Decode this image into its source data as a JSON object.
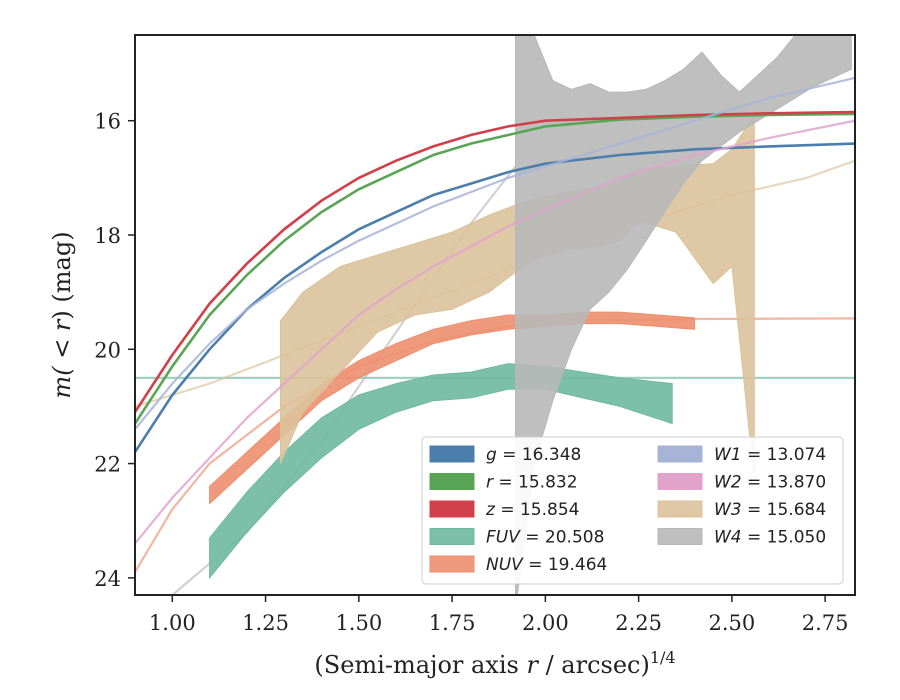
{
  "chart_data": {
    "type": "line",
    "xlabel_main": "(Semi-major axis ",
    "xlabel_r": "r",
    "xlabel_unit": " / arcsec)",
    "xlabel_exp": "1/4",
    "ylabel_main": "m(",
    "ylabel_lt": " < ",
    "ylabel_r": "r",
    "ylabel_tail": ") (mag)",
    "xlim": [
      0.9,
      2.83
    ],
    "ylim": [
      24.3,
      14.5
    ],
    "y_inverted": true,
    "grid": false,
    "legend_position": "lower-right",
    "xticks": [
      "1.00",
      "1.25",
      "1.50",
      "1.75",
      "2.00",
      "2.25",
      "2.50",
      "2.75"
    ],
    "xtick_values": [
      1.0,
      1.25,
      1.5,
      1.75,
      2.0,
      2.25,
      2.5,
      2.75
    ],
    "yticks": [
      "16",
      "18",
      "20",
      "22",
      "24"
    ],
    "ytick_values": [
      16,
      18,
      20,
      22,
      24
    ],
    "series": [
      {
        "name": "g = 16.348",
        "label_var": "g",
        "label_val": " = 16.348",
        "color": "#4c7eab",
        "style": "line",
        "width": 2.6,
        "x": [
          0.9,
          1.0,
          1.1,
          1.2,
          1.3,
          1.4,
          1.5,
          1.6,
          1.7,
          1.8,
          1.9,
          2.0,
          2.2,
          2.4,
          2.6,
          2.83
        ],
        "y": [
          21.8,
          20.8,
          20.0,
          19.3,
          18.75,
          18.3,
          17.9,
          17.6,
          17.3,
          17.1,
          16.9,
          16.75,
          16.6,
          16.5,
          16.45,
          16.4
        ]
      },
      {
        "name": "r = 15.832",
        "label_var": "r",
        "label_val": " = 15.832",
        "color": "#5aa555",
        "style": "line",
        "width": 2.6,
        "x": [
          0.9,
          1.0,
          1.1,
          1.2,
          1.3,
          1.4,
          1.5,
          1.6,
          1.7,
          1.8,
          1.9,
          2.0,
          2.2,
          2.4,
          2.6,
          2.83
        ],
        "y": [
          21.3,
          20.3,
          19.4,
          18.7,
          18.1,
          17.6,
          17.2,
          16.9,
          16.6,
          16.4,
          16.25,
          16.1,
          15.98,
          15.93,
          15.9,
          15.88
        ]
      },
      {
        "name": "z = 15.854",
        "label_var": "z",
        "label_val": " = 15.854",
        "color": "#d1404a",
        "style": "line",
        "width": 2.6,
        "x": [
          0.9,
          1.0,
          1.1,
          1.2,
          1.3,
          1.4,
          1.5,
          1.6,
          1.7,
          1.8,
          1.9,
          2.0,
          2.2,
          2.4,
          2.6,
          2.83
        ],
        "y": [
          21.1,
          20.1,
          19.2,
          18.5,
          17.9,
          17.4,
          17.0,
          16.7,
          16.45,
          16.25,
          16.1,
          16.0,
          15.95,
          15.9,
          15.87,
          15.85
        ]
      },
      {
        "name": "FUV = 20.508",
        "label_var": "FUV",
        "label_val": " = 20.508",
        "color": "#6fb9a0",
        "style": "band",
        "x": [
          1.1,
          1.2,
          1.3,
          1.4,
          1.5,
          1.6,
          1.7,
          1.8,
          1.9,
          2.0,
          2.1,
          2.2,
          2.34
        ],
        "y_low": [
          24.0,
          23.2,
          22.5,
          21.9,
          21.4,
          21.1,
          20.9,
          20.85,
          20.7,
          20.7,
          20.85,
          21.0,
          21.3
        ],
        "y_high": [
          23.3,
          22.5,
          21.8,
          21.2,
          20.8,
          20.6,
          20.45,
          20.4,
          20.25,
          20.3,
          20.4,
          20.5,
          20.6
        ],
        "ext_x": [
          0.9,
          2.83
        ],
        "ext_y": [
          20.5,
          20.5
        ]
      },
      {
        "name": "NUV = 19.464",
        "label_var": "NUV",
        "label_val": " = 19.464",
        "color": "#ed8f6e",
        "style": "band",
        "x": [
          1.1,
          1.2,
          1.3,
          1.4,
          1.5,
          1.6,
          1.7,
          1.8,
          1.9,
          2.0,
          2.1,
          2.2,
          2.3,
          2.4
        ],
        "y_low": [
          22.7,
          22.1,
          21.5,
          20.9,
          20.5,
          20.2,
          19.9,
          19.75,
          19.65,
          19.6,
          19.55,
          19.55,
          19.6,
          19.65
        ],
        "y_high": [
          22.4,
          21.8,
          21.2,
          20.6,
          20.2,
          19.9,
          19.65,
          19.5,
          19.4,
          19.4,
          19.35,
          19.35,
          19.4,
          19.45
        ],
        "ext_x": [
          0.9,
          1.0,
          1.1,
          1.3,
          1.5,
          1.7,
          1.9,
          2.1,
          2.4,
          2.83
        ],
        "ext_y": [
          23.9,
          22.8,
          22.0,
          21.0,
          20.3,
          19.85,
          19.6,
          19.5,
          19.47,
          19.46
        ]
      },
      {
        "name": "W1 = 13.074",
        "label_var": "W1",
        "label_val": " = 13.074",
        "color": "#a6b4d6",
        "style": "line",
        "width": 2.2,
        "x": [
          0.9,
          1.0,
          1.1,
          1.2,
          1.3,
          1.4,
          1.5,
          1.6,
          1.7,
          1.8,
          1.9,
          2.0,
          2.2,
          2.4,
          2.6,
          2.83
        ],
        "y": [
          21.4,
          20.6,
          19.9,
          19.3,
          18.85,
          18.45,
          18.1,
          17.8,
          17.5,
          17.25,
          17.0,
          16.8,
          16.4,
          16.0,
          15.6,
          15.25
        ]
      },
      {
        "name": "W2 = 13.870",
        "label_var": "W2",
        "label_val": " = 13.870",
        "color": "#e1a3cc",
        "style": "line",
        "width": 2.2,
        "x": [
          0.9,
          1.0,
          1.1,
          1.2,
          1.3,
          1.4,
          1.5,
          1.6,
          1.7,
          1.8,
          1.9,
          2.0,
          2.2,
          2.4,
          2.6,
          2.83
        ],
        "y": [
          23.4,
          22.6,
          21.9,
          21.2,
          20.6,
          20.0,
          19.4,
          18.95,
          18.55,
          18.2,
          17.85,
          17.55,
          17.0,
          16.6,
          16.3,
          16.0
        ]
      },
      {
        "name": "W3 = 15.684",
        "label_var": "W3",
        "label_val": " = 15.684",
        "color": "#dcc29b",
        "style": "band",
        "x": [
          1.29,
          1.35,
          1.45,
          1.55,
          1.65,
          1.75,
          1.85,
          1.95,
          2.05,
          2.15,
          2.2,
          2.25,
          2.35,
          2.45,
          2.5,
          2.56
        ],
        "y_low": [
          22.0,
          21.1,
          20.4,
          19.7,
          19.4,
          19.3,
          19.0,
          18.5,
          18.25,
          18.2,
          18.1,
          17.75,
          17.95,
          18.85,
          18.55,
          22.3
        ],
        "y_high": [
          19.5,
          19.0,
          18.55,
          18.35,
          18.15,
          17.95,
          17.65,
          17.4,
          17.25,
          17.15,
          17.0,
          16.85,
          16.8,
          16.75,
          16.5,
          15.9
        ],
        "ext_x": [
          0.9,
          1.1,
          1.3,
          1.5,
          1.7,
          1.9,
          2.1,
          2.3,
          2.5,
          2.7,
          2.83
        ],
        "ext_y": [
          21.0,
          20.6,
          20.1,
          19.6,
          19.1,
          18.6,
          18.1,
          17.7,
          17.3,
          17.0,
          16.7
        ]
      },
      {
        "name": "W4 = 15.050",
        "label_var": "W4",
        "label_val": " = 15.050",
        "color": "#b8b8b8",
        "style": "band",
        "x": [
          1.92,
          1.925,
          1.97,
          2.02,
          2.07,
          2.12,
          2.17,
          2.22,
          2.27,
          2.32,
          2.37,
          2.42,
          2.47,
          2.52,
          2.57,
          2.62,
          2.67,
          2.72,
          2.77,
          2.82
        ],
        "y_low": [
          24.3,
          24.3,
          22.0,
          20.9,
          20.0,
          19.3,
          19.0,
          18.6,
          18.1,
          17.6,
          17.1,
          16.7,
          16.45,
          16.2,
          16.0,
          15.8,
          15.6,
          15.4,
          15.25,
          15.1
        ],
        "y_high": [
          14.5,
          14.5,
          14.5,
          15.3,
          15.45,
          15.35,
          15.5,
          15.5,
          15.45,
          15.3,
          15.1,
          14.8,
          15.2,
          15.5,
          15.2,
          14.9,
          14.5,
          14.5,
          14.5,
          14.5
        ],
        "ext_x": [
          1.0,
          1.2,
          1.4,
          1.6,
          1.8,
          1.92
        ],
        "ext_y": [
          24.3,
          23.2,
          21.6,
          19.7,
          17.8,
          16.8
        ]
      }
    ]
  }
}
